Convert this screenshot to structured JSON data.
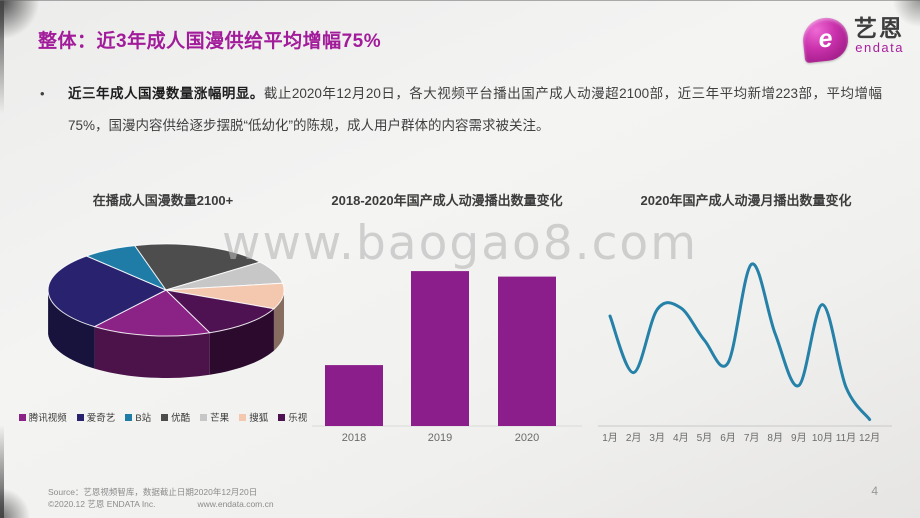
{
  "slide": {
    "title": "整体：近3年成人国漫供给平均增幅75%",
    "watermark": "www.baogao8.com",
    "page_number": "4"
  },
  "logo": {
    "mark_letter": "e",
    "brand_cn": "艺恩",
    "brand_en": "endata"
  },
  "bullet": {
    "marker": "•",
    "lead_bold": "近三年成人国漫数量涨幅明显。",
    "body": "截止2020年12月20日，各大视频平台播出国产成人动漫超2100部，近三年平均新增223部，平均增幅75%，国漫内容供给逐步摆脱“低幼化”的陈规，成人用户群体的内容需求被关注。"
  },
  "footer": {
    "source": "Source：艺恩视频智库，数据截止日期2020年12月20日",
    "copyright": "©2020.12 艺恩 ENDATA Inc.",
    "website": "www.endata.com.cn"
  },
  "chart_data": [
    {
      "type": "pie",
      "style": "3d",
      "title": "在播成人国漫数量2100+",
      "legend_position": "bottom",
      "direction": "clockwise",
      "start_angle_deg": 291.8,
      "series": [
        {
          "name": "腾讯视频",
          "share_pct": 16.4,
          "color": "#8B2286"
        },
        {
          "name": "爱奇艺",
          "share_pct": 27.9,
          "color": "#29226F"
        },
        {
          "name": "B站",
          "share_pct": 7.5,
          "color": "#1E7CA7"
        },
        {
          "name": "优酷",
          "share_pct": 18.9,
          "color": "#4D4D4D"
        },
        {
          "name": "芒果",
          "share_pct": 8.0,
          "color": "#C7C7C7"
        },
        {
          "name": "搜狐",
          "share_pct": 9.0,
          "color": "#F4C7AF"
        },
        {
          "name": "乐视",
          "share_pct": 12.3,
          "color": "#4E1253"
        }
      ]
    },
    {
      "type": "bar",
      "title": "2018-2020年国产成人动漫播出数量变化",
      "categories": [
        "2018",
        "2019",
        "2020"
      ],
      "values": [
        110,
        280,
        270
      ],
      "bar_color": "#8B1E8B",
      "ylim": [
        0,
        300
      ],
      "y_axis_visible": false,
      "grid": false
    },
    {
      "type": "line",
      "title": "2020年国产成人动漫月播出数量变化",
      "x": [
        "1月",
        "2月",
        "3月",
        "4月",
        "5月",
        "6月",
        "7月",
        "8月",
        "9月",
        "10月",
        "11月",
        "12月"
      ],
      "values": [
        68,
        33,
        72,
        73,
        53,
        39,
        100,
        57,
        25,
        75,
        24,
        4
      ],
      "line_color": "#2581A8",
      "smooth": true,
      "ylim": [
        0,
        110
      ],
      "y_axis_visible": false,
      "grid": false
    }
  ]
}
